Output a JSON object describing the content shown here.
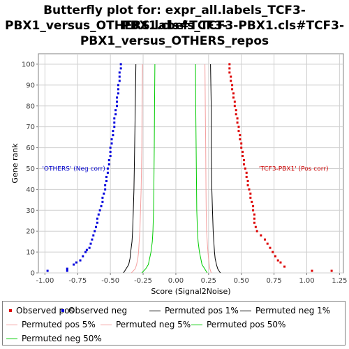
{
  "chart_data": {
    "type": "scatter",
    "title_lines": [
      "Butterfly plot for: expr_all.labels_TCF3-PBX1.cls#TCF3-",
      "PBX1_versus_OTHERS.labels_TCF3-PBX1.cls#TCF3-",
      "PBX1_versus_OTHERS_repos"
    ],
    "xlabel": "Score (Signal2Noise)",
    "ylabel": "Gene rank",
    "xlim": [
      -1.05,
      1.28
    ],
    "ylim": [
      0,
      105
    ],
    "xticks": [
      "-1.00",
      "-0.75",
      "-0.50",
      "-0.25",
      "0.00",
      "0.25",
      "0.50",
      "0.75",
      "1.00",
      "1.25"
    ],
    "xtick_values": [
      -1.0,
      -0.75,
      -0.5,
      -0.25,
      0.0,
      0.25,
      0.5,
      0.75,
      1.0,
      1.25
    ],
    "yticks": [
      "0",
      "10",
      "20",
      "30",
      "40",
      "50",
      "60",
      "70",
      "80",
      "90",
      "100"
    ],
    "ytick_values": [
      0,
      10,
      20,
      30,
      40,
      50,
      60,
      70,
      80,
      90,
      100
    ],
    "grid": true,
    "annotations": [
      {
        "text": "'OTHERS' (Neg corr)",
        "x": -0.78,
        "y": 50,
        "color": "#0000cc"
      },
      {
        "text": "'TCF3-PBX1' (Pos corr)",
        "x": 0.9,
        "y": 50,
        "color": "#cc0000"
      }
    ],
    "series": [
      {
        "name": "Observed pos",
        "kind": "points",
        "color": "#dd0000",
        "points": [
          [
            1.19,
            1
          ],
          [
            1.04,
            1
          ],
          [
            0.83,
            3
          ],
          [
            0.8,
            5
          ],
          [
            0.78,
            6
          ],
          [
            0.76,
            8
          ],
          [
            0.74,
            10
          ],
          [
            0.72,
            12
          ],
          [
            0.7,
            14
          ],
          [
            0.68,
            16
          ],
          [
            0.65,
            18
          ],
          [
            0.62,
            20
          ],
          [
            0.61,
            22
          ],
          [
            0.6,
            24
          ],
          [
            0.6,
            26
          ],
          [
            0.6,
            28
          ],
          [
            0.59,
            30
          ],
          [
            0.59,
            32
          ],
          [
            0.58,
            34
          ],
          [
            0.57,
            36
          ],
          [
            0.57,
            38
          ],
          [
            0.56,
            40
          ],
          [
            0.55,
            42
          ],
          [
            0.55,
            44
          ],
          [
            0.54,
            46
          ],
          [
            0.54,
            48
          ],
          [
            0.53,
            50
          ],
          [
            0.52,
            52
          ],
          [
            0.52,
            54
          ],
          [
            0.51,
            56
          ],
          [
            0.51,
            58
          ],
          [
            0.5,
            60
          ],
          [
            0.5,
            62
          ],
          [
            0.49,
            64
          ],
          [
            0.49,
            66
          ],
          [
            0.48,
            68
          ],
          [
            0.48,
            70
          ],
          [
            0.47,
            72
          ],
          [
            0.47,
            74
          ],
          [
            0.46,
            76
          ],
          [
            0.46,
            78
          ],
          [
            0.45,
            80
          ],
          [
            0.45,
            82
          ],
          [
            0.44,
            84
          ],
          [
            0.44,
            86
          ],
          [
            0.43,
            88
          ],
          [
            0.43,
            90
          ],
          [
            0.42,
            92
          ],
          [
            0.42,
            94
          ],
          [
            0.41,
            96
          ],
          [
            0.41,
            98
          ],
          [
            0.41,
            100
          ]
        ]
      },
      {
        "name": "Observed neg",
        "kind": "points",
        "color": "#0000dd",
        "points": [
          [
            -0.98,
            1
          ],
          [
            -0.83,
            1
          ],
          [
            -0.83,
            2
          ],
          [
            -0.78,
            4
          ],
          [
            -0.76,
            5
          ],
          [
            -0.73,
            6
          ],
          [
            -0.71,
            8
          ],
          [
            -0.69,
            10
          ],
          [
            -0.68,
            11
          ],
          [
            -0.66,
            12
          ],
          [
            -0.65,
            14
          ],
          [
            -0.64,
            16
          ],
          [
            -0.63,
            18
          ],
          [
            -0.62,
            20
          ],
          [
            -0.61,
            22
          ],
          [
            -0.6,
            24
          ],
          [
            -0.6,
            26
          ],
          [
            -0.59,
            28
          ],
          [
            -0.58,
            30
          ],
          [
            -0.57,
            32
          ],
          [
            -0.56,
            34
          ],
          [
            -0.56,
            36
          ],
          [
            -0.55,
            38
          ],
          [
            -0.54,
            40
          ],
          [
            -0.54,
            42
          ],
          [
            -0.53,
            44
          ],
          [
            -0.53,
            46
          ],
          [
            -0.52,
            48
          ],
          [
            -0.52,
            50
          ],
          [
            -0.51,
            52
          ],
          [
            -0.51,
            54
          ],
          [
            -0.5,
            56
          ],
          [
            -0.5,
            58
          ],
          [
            -0.5,
            60
          ],
          [
            -0.49,
            62
          ],
          [
            -0.49,
            64
          ],
          [
            -0.48,
            66
          ],
          [
            -0.48,
            68
          ],
          [
            -0.47,
            70
          ],
          [
            -0.47,
            72
          ],
          [
            -0.47,
            74
          ],
          [
            -0.46,
            76
          ],
          [
            -0.46,
            78
          ],
          [
            -0.45,
            80
          ],
          [
            -0.45,
            82
          ],
          [
            -0.45,
            84
          ],
          [
            -0.44,
            86
          ],
          [
            -0.44,
            88
          ],
          [
            -0.44,
            90
          ],
          [
            -0.43,
            92
          ],
          [
            -0.43,
            94
          ],
          [
            -0.43,
            96
          ],
          [
            -0.42,
            98
          ],
          [
            -0.42,
            100
          ]
        ]
      },
      {
        "name": "Permuted pos 1%",
        "kind": "line",
        "color": "#000000",
        "points": [
          [
            0.34,
            0
          ],
          [
            0.32,
            2
          ],
          [
            0.31,
            4
          ],
          [
            0.3,
            7
          ],
          [
            0.295,
            10
          ],
          [
            0.29,
            15
          ],
          [
            0.285,
            20
          ],
          [
            0.28,
            30
          ],
          [
            0.275,
            40
          ],
          [
            0.27,
            60
          ],
          [
            0.27,
            80
          ],
          [
            0.265,
            100
          ]
        ]
      },
      {
        "name": "Permuted neg 1%",
        "kind": "line",
        "color": "#000000",
        "points": [
          [
            -0.4,
            0
          ],
          [
            -0.38,
            2
          ],
          [
            -0.36,
            4
          ],
          [
            -0.35,
            7
          ],
          [
            -0.345,
            10
          ],
          [
            -0.335,
            15
          ],
          [
            -0.33,
            20
          ],
          [
            -0.325,
            30
          ],
          [
            -0.32,
            40
          ],
          [
            -0.315,
            60
          ],
          [
            -0.31,
            80
          ],
          [
            -0.305,
            100
          ]
        ]
      },
      {
        "name": "Permuted pos 5%",
        "kind": "line",
        "color": "#f4a0a0",
        "points": [
          [
            0.27,
            0
          ],
          [
            0.26,
            2
          ],
          [
            0.255,
            4
          ],
          [
            0.25,
            7
          ],
          [
            0.245,
            10
          ],
          [
            0.24,
            15
          ],
          [
            0.235,
            20
          ],
          [
            0.232,
            30
          ],
          [
            0.23,
            40
          ],
          [
            0.228,
            60
          ],
          [
            0.225,
            80
          ],
          [
            0.222,
            100
          ]
        ]
      },
      {
        "name": "Permuted neg 5%",
        "kind": "line",
        "color": "#f4a0a0",
        "points": [
          [
            -0.34,
            0
          ],
          [
            -0.31,
            2
          ],
          [
            -0.3,
            4
          ],
          [
            -0.29,
            7
          ],
          [
            -0.285,
            10
          ],
          [
            -0.28,
            15
          ],
          [
            -0.275,
            20
          ],
          [
            -0.27,
            30
          ],
          [
            -0.265,
            40
          ],
          [
            -0.26,
            60
          ],
          [
            -0.258,
            80
          ],
          [
            -0.255,
            100
          ]
        ]
      },
      {
        "name": "Permuted pos 50%",
        "kind": "line",
        "color": "#00cc00",
        "points": [
          [
            0.24,
            0
          ],
          [
            0.22,
            2
          ],
          [
            0.2,
            4
          ],
          [
            0.19,
            7
          ],
          [
            0.18,
            10
          ],
          [
            0.17,
            15
          ],
          [
            0.165,
            20
          ],
          [
            0.16,
            30
          ],
          [
            0.158,
            40
          ],
          [
            0.155,
            60
          ],
          [
            0.152,
            80
          ],
          [
            0.15,
            100
          ]
        ]
      },
      {
        "name": "Permuted neg 50%",
        "kind": "line",
        "color": "#00cc00",
        "points": [
          [
            -0.26,
            0
          ],
          [
            -0.23,
            2
          ],
          [
            -0.21,
            4
          ],
          [
            -0.2,
            7
          ],
          [
            -0.19,
            10
          ],
          [
            -0.18,
            15
          ],
          [
            -0.175,
            20
          ],
          [
            -0.17,
            30
          ],
          [
            -0.168,
            40
          ],
          [
            -0.165,
            60
          ],
          [
            -0.163,
            80
          ],
          [
            -0.16,
            100
          ]
        ]
      }
    ],
    "legend": [
      {
        "label": "Observed pos",
        "color": "#dd0000",
        "kind": "square"
      },
      {
        "label": "Observed neg",
        "color": "#0000dd",
        "kind": "square"
      },
      {
        "label": "Permuted pos 1%",
        "color": "#000000",
        "kind": "line"
      },
      {
        "label": "Permuted neg 1%",
        "color": "#000000",
        "kind": "line"
      },
      {
        "label": "Permuted pos 5%",
        "color": "#f4a0a0",
        "kind": "line"
      },
      {
        "label": "Permuted neg 5%",
        "color": "#f4a0a0",
        "kind": "line"
      },
      {
        "label": "Permuted pos 50%",
        "color": "#00cc00",
        "kind": "line"
      },
      {
        "label": "Permuted neg 50%",
        "color": "#00cc00",
        "kind": "line"
      }
    ]
  }
}
